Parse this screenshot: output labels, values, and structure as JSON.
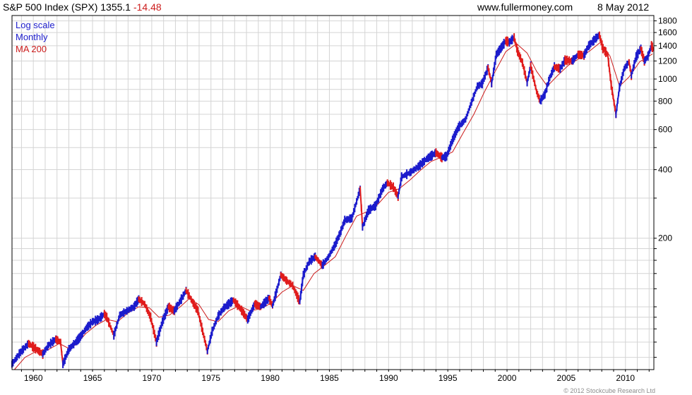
{
  "header": {
    "title": "S&P 500 Index (SPX) 1355.1",
    "change": "-14.48",
    "website": "www.fullermoney.com",
    "date": "8 May 2012"
  },
  "legend": {
    "scale": "Log scale",
    "period": "Monthly",
    "ma": "MA 200"
  },
  "copyright": "© 2012 Stockcube Research Ltd",
  "colors": {
    "price": "#1c1ccc",
    "down": "#e01c1c",
    "ma": "#cc1c1c",
    "grid": "#d4d4d4",
    "change": "#cc1c1c"
  },
  "chart_data": {
    "type": "line",
    "title": "S&P 500 Index (SPX) 1355.1 -14.48",
    "scale": "log",
    "xlim": [
      1958.2,
      2012.4
    ],
    "ylim": [
      53,
      1900
    ],
    "y_ticks": [
      200,
      400,
      600,
      800,
      1000,
      1200,
      1400,
      1600,
      1800
    ],
    "x_ticks": [
      1960,
      1965,
      1970,
      1975,
      1980,
      1985,
      1990,
      1995,
      2000,
      2005,
      2010
    ],
    "grid": true,
    "legend_position": "top-left",
    "series": [
      {
        "name": "Monthly",
        "points": [
          [
            1958.2,
            56
          ],
          [
            1958.9,
            63
          ],
          [
            1959.6,
            69
          ],
          [
            1960.1,
            66
          ],
          [
            1960.8,
            62
          ],
          [
            1961.3,
            68
          ],
          [
            1961.9,
            72
          ],
          [
            1962.3,
            70
          ],
          [
            1962.5,
            56
          ],
          [
            1963.0,
            65
          ],
          [
            1963.9,
            73
          ],
          [
            1964.5,
            81
          ],
          [
            1965.0,
            86
          ],
          [
            1965.5,
            88
          ],
          [
            1966.0,
            93
          ],
          [
            1966.2,
            90
          ],
          [
            1966.8,
            75
          ],
          [
            1967.3,
            92
          ],
          [
            1967.9,
            96
          ],
          [
            1968.5,
            100
          ],
          [
            1968.9,
            108
          ],
          [
            1969.4,
            103
          ],
          [
            1969.9,
            90
          ],
          [
            1970.4,
            70
          ],
          [
            1970.9,
            86
          ],
          [
            1971.4,
            100
          ],
          [
            1971.9,
            96
          ],
          [
            1972.5,
            108
          ],
          [
            1972.9,
            118
          ],
          [
            1973.5,
            104
          ],
          [
            1973.9,
            96
          ],
          [
            1974.3,
            78
          ],
          [
            1974.7,
            64
          ],
          [
            1975.1,
            78
          ],
          [
            1975.6,
            91
          ],
          [
            1976.1,
            99
          ],
          [
            1976.9,
            107
          ],
          [
            1977.5,
            98
          ],
          [
            1978.1,
            88
          ],
          [
            1978.7,
            103
          ],
          [
            1979.2,
            100
          ],
          [
            1979.9,
            109
          ],
          [
            1980.2,
            101
          ],
          [
            1980.5,
            115
          ],
          [
            1980.9,
            138
          ],
          [
            1981.4,
            130
          ],
          [
            1981.9,
            124
          ],
          [
            1982.5,
            105
          ],
          [
            1982.8,
            138
          ],
          [
            1983.3,
            158
          ],
          [
            1983.8,
            166
          ],
          [
            1984.4,
            152
          ],
          [
            1984.9,
            165
          ],
          [
            1985.5,
            188
          ],
          [
            1985.9,
            210
          ],
          [
            1986.3,
            240
          ],
          [
            1986.9,
            245
          ],
          [
            1987.3,
            290
          ],
          [
            1987.6,
            330
          ],
          [
            1987.8,
            224
          ],
          [
            1988.3,
            265
          ],
          [
            1988.9,
            278
          ],
          [
            1989.5,
            330
          ],
          [
            1989.9,
            350
          ],
          [
            1990.4,
            335
          ],
          [
            1990.8,
            305
          ],
          [
            1991.1,
            372
          ],
          [
            1991.8,
            388
          ],
          [
            1992.5,
            412
          ],
          [
            1993.2,
            445
          ],
          [
            1994.0,
            475
          ],
          [
            1994.5,
            452
          ],
          [
            1994.9,
            458
          ],
          [
            1995.4,
            540
          ],
          [
            1995.9,
            615
          ],
          [
            1996.5,
            665
          ],
          [
            1997.0,
            790
          ],
          [
            1997.5,
            930
          ],
          [
            1997.9,
            955
          ],
          [
            1998.4,
            1120
          ],
          [
            1998.7,
            957
          ],
          [
            1999.1,
            1280
          ],
          [
            1999.5,
            1370
          ],
          [
            1999.9,
            1470
          ],
          [
            2000.2,
            1450
          ],
          [
            2000.6,
            1520
          ],
          [
            2000.9,
            1320
          ],
          [
            2001.3,
            1180
          ],
          [
            2001.7,
            965
          ],
          [
            2002.0,
            1140
          ],
          [
            2002.5,
            880
          ],
          [
            2002.8,
            800
          ],
          [
            2003.2,
            860
          ],
          [
            2003.6,
            1010
          ],
          [
            2004.0,
            1130
          ],
          [
            2004.5,
            1110
          ],
          [
            2004.9,
            1210
          ],
          [
            2005.5,
            1200
          ],
          [
            2006.0,
            1280
          ],
          [
            2006.5,
            1270
          ],
          [
            2006.9,
            1400
          ],
          [
            2007.5,
            1510
          ],
          [
            2007.8,
            1560
          ],
          [
            2008.1,
            1360
          ],
          [
            2008.5,
            1280
          ],
          [
            2008.8,
            940
          ],
          [
            2009.2,
            700
          ],
          [
            2009.5,
            920
          ],
          [
            2009.9,
            1110
          ],
          [
            2010.3,
            1190
          ],
          [
            2010.5,
            1040
          ],
          [
            2010.9,
            1250
          ],
          [
            2011.3,
            1360
          ],
          [
            2011.6,
            1200
          ],
          [
            2011.9,
            1260
          ],
          [
            2012.2,
            1400
          ],
          [
            2012.35,
            1355
          ]
        ]
      },
      {
        "name": "MA 200",
        "points": [
          [
            1958.4,
            53
          ],
          [
            1959.3,
            60
          ],
          [
            1960.3,
            64
          ],
          [
            1961.3,
            65
          ],
          [
            1962.2,
            69
          ],
          [
            1962.9,
            66
          ],
          [
            1963.6,
            68
          ],
          [
            1964.4,
            76
          ],
          [
            1965.3,
            83
          ],
          [
            1966.2,
            88
          ],
          [
            1967.1,
            86
          ],
          [
            1968.0,
            94
          ],
          [
            1968.9,
            100
          ],
          [
            1969.8,
            99
          ],
          [
            1970.6,
            90
          ],
          [
            1971.5,
            92
          ],
          [
            1972.4,
            100
          ],
          [
            1973.2,
            109
          ],
          [
            1974.0,
            102
          ],
          [
            1974.8,
            88
          ],
          [
            1975.6,
            86
          ],
          [
            1976.5,
            96
          ],
          [
            1977.4,
            101
          ],
          [
            1978.3,
            96
          ],
          [
            1979.2,
            98
          ],
          [
            1980.1,
            104
          ],
          [
            1981.0,
            116
          ],
          [
            1981.9,
            124
          ],
          [
            1982.8,
            118
          ],
          [
            1983.7,
            140
          ],
          [
            1984.6,
            152
          ],
          [
            1985.5,
            166
          ],
          [
            1986.4,
            205
          ],
          [
            1987.3,
            250
          ],
          [
            1988.2,
            262
          ],
          [
            1989.1,
            282
          ],
          [
            1990.0,
            318
          ],
          [
            1990.9,
            330
          ],
          [
            1991.8,
            360
          ],
          [
            1992.7,
            398
          ],
          [
            1993.6,
            435
          ],
          [
            1994.5,
            455
          ],
          [
            1995.4,
            478
          ],
          [
            1996.3,
            580
          ],
          [
            1997.2,
            700
          ],
          [
            1998.1,
            880
          ],
          [
            1999.0,
            1080
          ],
          [
            1999.9,
            1320
          ],
          [
            2000.8,
            1430
          ],
          [
            2001.7,
            1300
          ],
          [
            2002.5,
            1080
          ],
          [
            2003.4,
            930
          ],
          [
            2004.3,
            1040
          ],
          [
            2005.2,
            1150
          ],
          [
            2006.1,
            1230
          ],
          [
            2007.0,
            1330
          ],
          [
            2007.9,
            1450
          ],
          [
            2008.7,
            1260
          ],
          [
            2009.5,
            930
          ],
          [
            2010.3,
            1020
          ],
          [
            2011.2,
            1190
          ],
          [
            2012.3,
            1290
          ]
        ]
      }
    ]
  }
}
